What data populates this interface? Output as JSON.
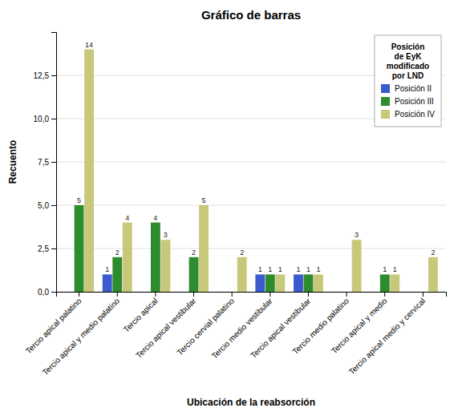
{
  "chart_data": {
    "type": "bar",
    "title": "Gráfico de barras",
    "xlabel": "Ubicación de la reabsorción",
    "ylabel": "Recuento",
    "legend_title": "Posición\nde EyK\nmodificado\npor LND",
    "categories": [
      "Tercio apical palatino",
      "Tercio apical y medio palatino",
      "Tercio apical",
      "Tercio apical vestibular",
      "Tercio cervial palatino",
      "Tercio medio vestibular",
      "Tercio apical vestibular",
      "Tercio medio palatino",
      "Tercio apical y medio",
      "Tercio apical medio y cervical"
    ],
    "series": [
      {
        "name": "Posición II",
        "color": "#3a5acd",
        "values": [
          0,
          1,
          0,
          0,
          0,
          1,
          1,
          0,
          0,
          0
        ]
      },
      {
        "name": "Posición III",
        "color": "#2e8b2e",
        "values": [
          5,
          2,
          4,
          2,
          0,
          1,
          1,
          0,
          1,
          0
        ]
      },
      {
        "name": "Posición IV",
        "color": "#c8c87a",
        "values": [
          14,
          4,
          3,
          5,
          2,
          1,
          1,
          3,
          1,
          2
        ]
      }
    ],
    "ylim": [
      0,
      15
    ],
    "yticks": [
      {
        "value": 0.0,
        "label": "0,0"
      },
      {
        "value": 2.5,
        "label": "2,5"
      },
      {
        "value": 5.0,
        "label": "5,0"
      },
      {
        "value": 7.5,
        "label": "7,5"
      },
      {
        "value": 10.0,
        "label": "10,0"
      },
      {
        "value": 12.5,
        "label": "12,5"
      }
    ],
    "grid": true,
    "legend": "upper right",
    "data_labels": true
  }
}
